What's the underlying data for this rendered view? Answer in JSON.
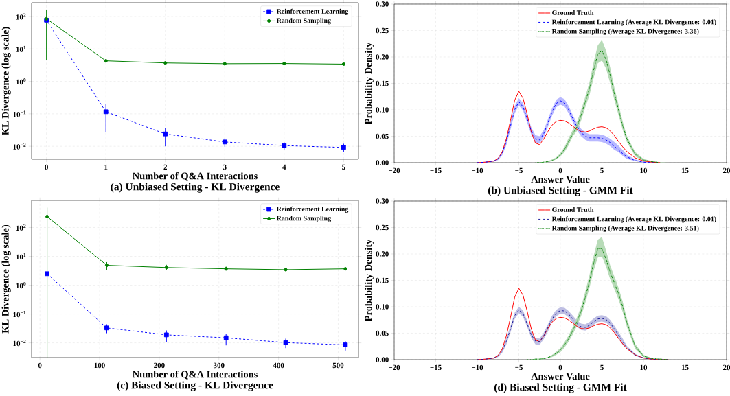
{
  "chart_data": [
    {
      "type": "line",
      "title": "(a) Unbiased Setting - KL Divergence",
      "xlabel": "Number of Q&A Interactions",
      "ylabel": "KL Divergence (log scale)",
      "log": true,
      "grid": true,
      "legend": "top right",
      "x": [
        0,
        1,
        2,
        3,
        4,
        5
      ],
      "xlim": [
        -0.25,
        5.25
      ],
      "xticks": [
        0,
        1,
        2,
        3,
        4,
        5
      ],
      "ylim": [
        0.004,
        265
      ],
      "yticks": [
        {
          "value": 0.01,
          "label": "10$^{−2}$"
        },
        {
          "value": 0.1,
          "label": "10$^{−1}$"
        },
        {
          "value": 1,
          "label": "10$^{0}$"
        },
        {
          "value": 10,
          "label": "10$^{1}$"
        },
        {
          "value": 100,
          "label": "10$^{2}$"
        }
      ],
      "series": [
        {
          "name": "Reinforcement Learning",
          "color": "#0000ff",
          "line_style": "dashed",
          "marker": "square",
          "values": [
            77,
            0.116,
            0.024,
            0.0136,
            0.0105,
            0.0092
          ],
          "errors": [
            null,
            [
              0.028,
              0.198
            ],
            [
              0.01,
              0.037
            ],
            [
              0.0097,
              0.0174
            ],
            [
              0.008,
              0.0132
            ],
            [
              0.0066,
              0.012
            ]
          ]
        },
        {
          "name": "Random Sampling",
          "color": "#008000",
          "line_style": "solid",
          "marker": "circle",
          "values": [
            85,
            4.3,
            3.7,
            3.5,
            3.55,
            3.4
          ],
          "errors": [
            [
              4.5,
              163
            ],
            [
              3.8,
              4.8
            ],
            null,
            null,
            null,
            null
          ]
        }
      ]
    },
    {
      "type": "line",
      "title": "(b) Unbiased Setting - GMM Fit",
      "xlabel": "Answer Value",
      "ylabel": "Probability Density",
      "grid": true,
      "legend": "top right",
      "x": [
        -20,
        -10,
        -9,
        -8,
        -7.5,
        -7,
        -6.5,
        -6,
        -5.5,
        -5,
        -4.5,
        -4,
        -3.5,
        -3,
        -2.5,
        -2,
        -1.5,
        -1,
        -0.5,
        0,
        0.5,
        1,
        1.5,
        2,
        2.5,
        3,
        3.5,
        4,
        4.5,
        5,
        5.5,
        6,
        6.5,
        7,
        7.5,
        8,
        9,
        10,
        11,
        12,
        13,
        20
      ],
      "xlim": [
        -20,
        20
      ],
      "xticks": [
        {
          "value": -20,
          "label": "−20"
        },
        {
          "value": -15,
          "label": "−15"
        },
        {
          "value": -10,
          "label": "−10"
        },
        {
          "value": -5,
          "label": "−5"
        },
        0,
        5,
        10,
        15,
        20
      ],
      "ylim": [
        0,
        0.3
      ],
      "yticks": [
        {
          "value": 0,
          "label": "0.00"
        },
        {
          "value": 0.05,
          "label": "0.05"
        },
        {
          "value": 0.1,
          "label": "0.10"
        },
        {
          "value": 0.15,
          "label": "0.15"
        },
        {
          "value": 0.2,
          "label": "0.20"
        },
        {
          "value": 0.25,
          "label": "0.25"
        },
        {
          "value": 0.3,
          "label": "0.30"
        }
      ],
      "series": [
        {
          "name": "Ground Truth",
          "color": "#ff0000",
          "line_style": "solid",
          "values": [
            null,
            0,
            0.001,
            0.003,
            0.008,
            0.02,
            0.045,
            0.08,
            0.118,
            0.135,
            0.122,
            0.092,
            0.058,
            0.037,
            0.034,
            0.045,
            0.059,
            0.071,
            0.078,
            0.08,
            0.079,
            0.075,
            0.069,
            0.063,
            0.059,
            0.058,
            0.06,
            0.064,
            0.067,
            0.068,
            0.066,
            0.06,
            0.051,
            0.04,
            0.03,
            0.021,
            0.009,
            0.003,
            0.001,
            0,
            null,
            null
          ]
        },
        {
          "name": "Reinforcement Learning (Average KL Divergence: 0.01)",
          "color": "#0000ff",
          "line_style": "dashed",
          "values": [
            null,
            0,
            0.001,
            0.003,
            0.007,
            0.018,
            0.04,
            0.07,
            0.1,
            0.115,
            0.106,
            0.083,
            0.06,
            0.045,
            0.043,
            0.055,
            0.075,
            0.096,
            0.112,
            0.117,
            0.113,
            0.1,
            0.083,
            0.068,
            0.057,
            0.05,
            0.047,
            0.047,
            0.047,
            0.046,
            0.043,
            0.038,
            0.031,
            0.024,
            0.017,
            0.011,
            0.004,
            0.001,
            0,
            0,
            null,
            null
          ],
          "lower": [
            0,
            0,
            0,
            0.002,
            0.005,
            0.014,
            0.033,
            0.063,
            0.093,
            0.108,
            0.099,
            0.076,
            0.053,
            0.038,
            0.036,
            0.048,
            0.068,
            0.089,
            0.105,
            0.11,
            0.106,
            0.093,
            0.076,
            0.061,
            0.05,
            0.043,
            0.04,
            0.04,
            0.04,
            0.039,
            0.036,
            0.031,
            0.024,
            0.02,
            0.013,
            0.007,
            0.003,
            0,
            0,
            0,
            0,
            0
          ],
          "upper": [
            0,
            0,
            0.002,
            0.004,
            0.009,
            0.022,
            0.047,
            0.077,
            0.107,
            0.122,
            0.113,
            0.09,
            0.067,
            0.052,
            0.05,
            0.062,
            0.082,
            0.103,
            0.119,
            0.124,
            0.12,
            0.107,
            0.09,
            0.075,
            0.064,
            0.057,
            0.054,
            0.054,
            0.054,
            0.053,
            0.05,
            0.045,
            0.039,
            0.032,
            0.024,
            0.015,
            0.006,
            0.002,
            0,
            0,
            0,
            0
          ]
        },
        {
          "name": "Random Sampling (Average KL Divergence: 3.36)",
          "color": "#008000",
          "line_style": "dotted",
          "values": [
            null,
            null,
            null,
            null,
            null,
            null,
            null,
            null,
            null,
            null,
            null,
            null,
            null,
            0,
            0,
            0.001,
            0.002,
            0.004,
            0.008,
            0.015,
            0.025,
            0.04,
            0.055,
            0.068,
            0.09,
            0.115,
            0.14,
            0.175,
            0.205,
            0.212,
            0.195,
            0.165,
            0.13,
            0.1,
            0.07,
            0.045,
            0.016,
            0.005,
            0.002,
            0,
            null,
            null
          ],
          "lower": [
            0,
            0,
            0,
            0,
            0,
            0,
            0,
            0,
            0,
            0,
            0,
            0,
            0,
            0,
            0,
            0,
            0.001,
            0.003,
            0.006,
            0.012,
            0.02,
            0.033,
            0.05,
            0.06,
            0.08,
            0.105,
            0.128,
            0.16,
            0.188,
            0.193,
            0.178,
            0.15,
            0.118,
            0.09,
            0.062,
            0.039,
            0.012,
            0.003,
            0.001,
            0,
            0,
            0
          ],
          "upper": [
            0,
            0,
            0,
            0,
            0,
            0,
            0,
            0,
            0,
            0,
            0,
            0,
            0,
            0,
            0,
            0.002,
            0.003,
            0.006,
            0.01,
            0.018,
            0.03,
            0.047,
            0.062,
            0.077,
            0.1,
            0.125,
            0.152,
            0.19,
            0.222,
            0.232,
            0.212,
            0.18,
            0.142,
            0.11,
            0.078,
            0.051,
            0.02,
            0.007,
            0.003,
            0.001,
            0,
            0
          ]
        }
      ]
    },
    {
      "type": "line",
      "title": "(c) Biased Setting - KL Divergence",
      "xlabel": "Number of Q&A Interactions",
      "ylabel": "KL Divergence (log scale)",
      "log": true,
      "grid": true,
      "legend": "top right",
      "x": [
        12,
        112,
        212,
        312,
        412,
        512
      ],
      "xlim": [
        -14,
        534
      ],
      "xticks": [
        0,
        100,
        200,
        300,
        400,
        500
      ],
      "ylim": [
        0.0031,
        870
      ],
      "yticks": [
        {
          "value": 0.01,
          "label": "10$^{−2}$"
        },
        {
          "value": 0.1,
          "label": "10$^{−1}$"
        },
        {
          "value": 1,
          "label": "10$^{0}$"
        },
        {
          "value": 10,
          "label": "10$^{1}$"
        },
        {
          "value": 100,
          "label": "10$^{2}$"
        }
      ],
      "series": [
        {
          "name": "Reinforcement Learning",
          "color": "#0000ff",
          "line_style": "dashed",
          "marker": "square",
          "values": [
            2.5,
            0.033,
            0.019,
            0.015,
            0.0102,
            0.0085
          ],
          "errors": [
            null,
            [
              0.0216,
              0.044
            ],
            [
              0.0108,
              0.027
            ],
            [
              0.0082,
              0.0208
            ],
            [
              0.0066,
              0.014
            ],
            [
              0.0054,
              0.0114
            ]
          ]
        },
        {
          "name": "Random Sampling",
          "color": "#008000",
          "line_style": "solid",
          "marker": "circle",
          "values": [
            240,
            4.9,
            4.1,
            3.7,
            3.45,
            3.7
          ],
          "errors": [
            [
              0.0031,
              490
            ],
            [
              3.3,
              6.3
            ],
            [
              3.3,
              5.1
            ],
            [
              3.2,
              4.4
            ],
            null,
            null
          ]
        }
      ]
    },
    {
      "type": "line",
      "title": "(d) Biased Setting - GMM Fit",
      "xlabel": "Answer Value",
      "ylabel": "Probability Density",
      "grid": true,
      "legend": "top right",
      "x": [
        -20,
        -10,
        -9,
        -8,
        -7.5,
        -7,
        -6.5,
        -6,
        -5.5,
        -5,
        -4.5,
        -4,
        -3.5,
        -3,
        -2.5,
        -2,
        -1.5,
        -1,
        -0.5,
        0,
        0.5,
        1,
        1.5,
        2,
        2.5,
        3,
        3.5,
        4,
        4.5,
        5,
        5.5,
        6,
        6.5,
        7,
        7.5,
        8,
        9,
        10,
        11,
        12,
        13,
        20
      ],
      "xlim": [
        -20,
        20
      ],
      "xticks": [
        {
          "value": -20,
          "label": "−20"
        },
        {
          "value": -15,
          "label": "−15"
        },
        {
          "value": -10,
          "label": "−10"
        },
        {
          "value": -5,
          "label": "−5"
        },
        0,
        5,
        10,
        15,
        20
      ],
      "ylim": [
        0,
        0.3
      ],
      "yticks": [
        {
          "value": 0,
          "label": "0.00"
        },
        {
          "value": 0.05,
          "label": "0.05"
        },
        {
          "value": 0.1,
          "label": "0.10"
        },
        {
          "value": 0.15,
          "label": "0.15"
        },
        {
          "value": 0.2,
          "label": "0.20"
        },
        {
          "value": 0.25,
          "label": "0.25"
        },
        {
          "value": 0.3,
          "label": "0.30"
        }
      ],
      "series": [
        {
          "name": "Ground Truth",
          "color": "#ff0000",
          "line_style": "solid",
          "values": [
            null,
            0,
            0.001,
            0.003,
            0.008,
            0.02,
            0.045,
            0.08,
            0.118,
            0.135,
            0.122,
            0.092,
            0.058,
            0.037,
            0.034,
            0.045,
            0.059,
            0.071,
            0.078,
            0.08,
            0.079,
            0.075,
            0.069,
            0.063,
            0.059,
            0.058,
            0.06,
            0.064,
            0.067,
            0.068,
            0.066,
            0.06,
            0.051,
            0.04,
            0.03,
            0.021,
            0.009,
            0.003,
            0.001,
            0,
            0,
            null
          ]
        },
        {
          "name": "Reinforcement Learning (Average KL Divergence: 0.01)",
          "color": "#1a1a9a",
          "line_style": "dashed",
          "values": [
            null,
            0,
            0.001,
            0.003,
            0.007,
            0.016,
            0.035,
            0.058,
            0.083,
            0.094,
            0.087,
            0.068,
            0.047,
            0.035,
            0.034,
            0.045,
            0.061,
            0.077,
            0.088,
            0.093,
            0.092,
            0.086,
            0.077,
            0.068,
            0.062,
            0.061,
            0.065,
            0.072,
            0.077,
            0.078,
            0.076,
            0.069,
            0.058,
            0.046,
            0.034,
            0.023,
            0.009,
            0.003,
            0.001,
            0,
            0,
            null
          ],
          "lower": [
            0,
            0,
            0,
            0.002,
            0.005,
            0.013,
            0.029,
            0.052,
            0.077,
            0.088,
            0.081,
            0.062,
            0.041,
            0.029,
            0.028,
            0.039,
            0.053,
            0.071,
            0.082,
            0.087,
            0.086,
            0.08,
            0.069,
            0.062,
            0.056,
            0.055,
            0.059,
            0.066,
            0.071,
            0.072,
            0.07,
            0.063,
            0.052,
            0.04,
            0.028,
            0.02,
            0.007,
            0.002,
            0,
            0,
            0,
            0
          ],
          "upper": [
            0,
            0,
            0.002,
            0.004,
            0.009,
            0.019,
            0.041,
            0.064,
            0.089,
            0.1,
            0.093,
            0.074,
            0.053,
            0.041,
            0.04,
            0.051,
            0.067,
            0.083,
            0.094,
            0.099,
            0.098,
            0.092,
            0.083,
            0.074,
            0.068,
            0.067,
            0.071,
            0.078,
            0.083,
            0.084,
            0.082,
            0.075,
            0.064,
            0.052,
            0.04,
            0.026,
            0.011,
            0.004,
            0.002,
            0,
            0,
            0
          ]
        },
        {
          "name": "Random Sampling (Average KL Divergence: 3.51)",
          "color": "#008000",
          "line_style": "dotted",
          "values": [
            null,
            null,
            null,
            null,
            null,
            null,
            null,
            null,
            null,
            null,
            null,
            0,
            0,
            0.001,
            0.001,
            0.002,
            0.004,
            0.007,
            0.012,
            0.018,
            0.028,
            0.04,
            0.055,
            0.072,
            0.092,
            0.118,
            0.148,
            0.182,
            0.21,
            0.21,
            0.19,
            0.165,
            0.145,
            0.125,
            0.1,
            0.07,
            0.025,
            0.007,
            0.002,
            0.001,
            0,
            null
          ],
          "lower": [
            0,
            0,
            0,
            0,
            0,
            0,
            0,
            0,
            0,
            0,
            0,
            0,
            0,
            0,
            0,
            0.001,
            0.003,
            0.005,
            0.009,
            0.014,
            0.023,
            0.034,
            0.048,
            0.064,
            0.083,
            0.107,
            0.136,
            0.168,
            0.193,
            0.195,
            0.176,
            0.152,
            0.133,
            0.114,
            0.09,
            0.062,
            0.02,
            0.005,
            0.001,
            0,
            0,
            0
          ],
          "upper": [
            0,
            0,
            0,
            0,
            0,
            0,
            0,
            0,
            0,
            0,
            0,
            0,
            0,
            0.002,
            0.002,
            0.003,
            0.005,
            0.009,
            0.015,
            0.022,
            0.033,
            0.046,
            0.062,
            0.08,
            0.101,
            0.129,
            0.16,
            0.196,
            0.227,
            0.232,
            0.206,
            0.178,
            0.157,
            0.136,
            0.11,
            0.078,
            0.03,
            0.009,
            0.003,
            0.002,
            0,
            0
          ]
        }
      ]
    }
  ]
}
